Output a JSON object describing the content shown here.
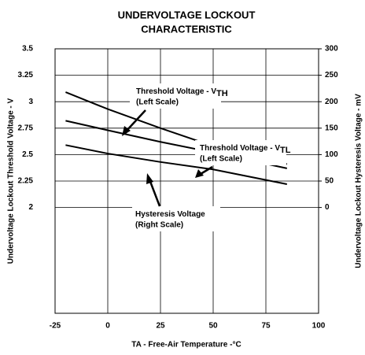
{
  "chart_data": {
    "type": "line",
    "title": [
      "UNDERVOLTAGE LOCKOUT",
      "CHARACTERISTIC"
    ],
    "x_label": "TA - Free-Air Temperature -°C",
    "y_label": "Undervoltage Lockout Threshold Voltage - V",
    "y2_label": "Undervoltage Lockout Hysteresis Voltage - mV",
    "xlim": [
      -25,
      100
    ],
    "xticks": [
      -25,
      0,
      25,
      50,
      75,
      100
    ],
    "ylim": [
      1,
      3.5
    ],
    "yticks": [
      2,
      2.25,
      2.5,
      2.75,
      3,
      3.25,
      3.5
    ],
    "y2lim": [
      -200,
      300
    ],
    "y2ticks": [
      0,
      50,
      100,
      150,
      200,
      250,
      300
    ],
    "grid": true,
    "series": [
      {
        "name": "VTH",
        "color": "#000000",
        "x": [
          -20,
          0,
          25,
          50,
          85
        ],
        "values": [
          3.09,
          2.93,
          2.75,
          2.58,
          2.41
        ]
      },
      {
        "name": "VTL",
        "color": "#000000",
        "x": [
          -20,
          0,
          25,
          50,
          85
        ],
        "values": [
          2.82,
          2.73,
          2.62,
          2.52,
          2.37
        ]
      },
      {
        "name": "Hysteresis",
        "color": "#000000",
        "axis": "y2",
        "x": [
          -20,
          0,
          25,
          50,
          85
        ],
        "values": [
          118,
          102,
          86,
          72,
          44
        ]
      }
    ],
    "annotations": [
      {
        "text": "Threshold Voltage - V",
        "sub": "TH",
        "note": "(Left Scale)"
      },
      {
        "text": "Threshold Voltage - V",
        "sub": "TL",
        "note": "(Left Scale)"
      },
      {
        "text": "Hysteresis Voltage",
        "note": "(Right Scale)"
      }
    ]
  }
}
